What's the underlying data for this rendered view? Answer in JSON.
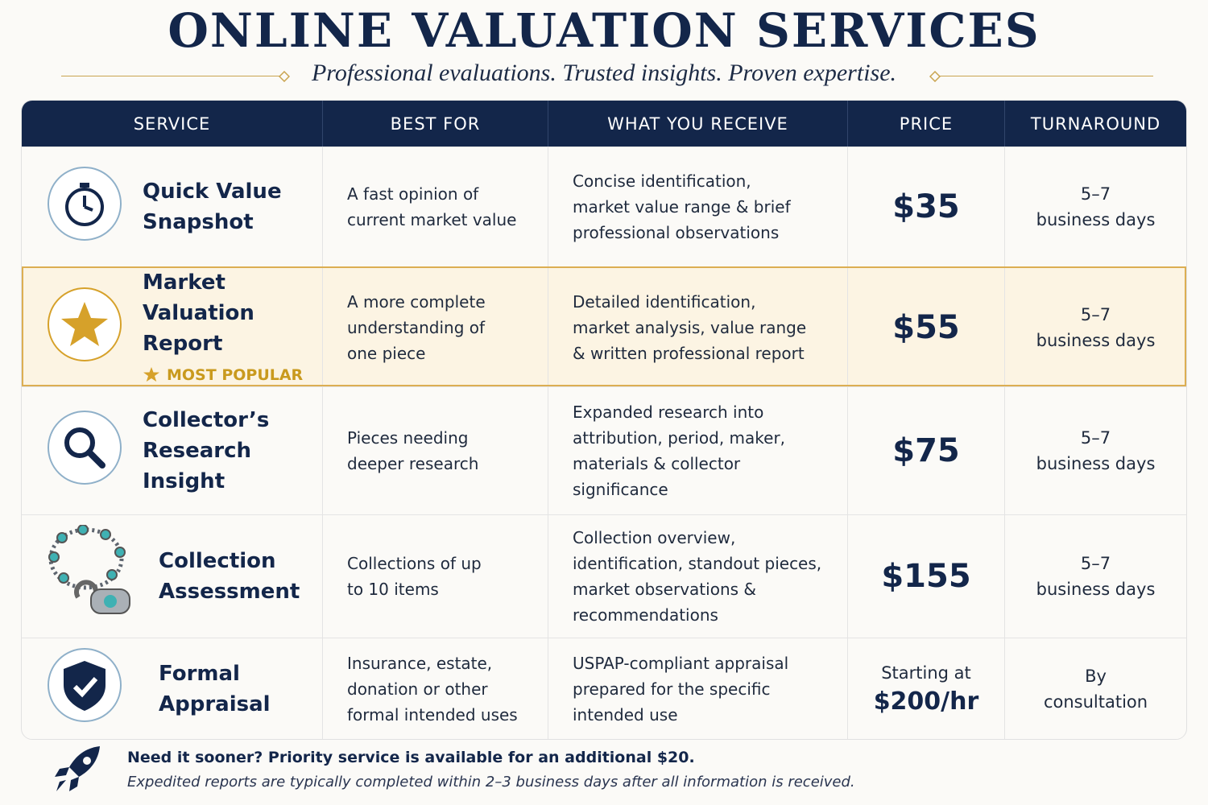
{
  "header": {
    "title": "ONLINE VALUATION SERVICES",
    "subtitle": "Professional evaluations. Trusted insights. Proven expertise."
  },
  "table": {
    "columns": [
      "SERVICE",
      "BEST FOR",
      "WHAT YOU RECEIVE",
      "PRICE",
      "TURNAROUND"
    ],
    "rows": [
      {
        "service": "Quick Value\nSnapshot",
        "best_for": "A fast opinion of\ncurrent market value",
        "receive": "Concise identification,\nmarket value range & brief\nprofessional observations",
        "price": "$35",
        "turnaround": "5–7\nbusiness days"
      },
      {
        "service": "Market Valuation\nReport",
        "badge": "MOST POPULAR",
        "best_for": "A more complete\nunderstanding of\none piece",
        "receive": "Detailed identification,\nmarket analysis, value range\n& written professional report",
        "price": "$55",
        "turnaround": "5–7\nbusiness days"
      },
      {
        "service": "Collector’s\nResearch Insight",
        "best_for": "Pieces needing\ndeeper research",
        "receive": "Expanded research into\nattribution, period, maker,\nmaterials & collector\nsignificance",
        "price": "$75",
        "turnaround": "5–7\nbusiness days"
      },
      {
        "service": "Collection\nAssessment",
        "best_for": "Collections of up\nto 10 items",
        "receive": "Collection overview,\nidentification, standout pieces,\nmarket observations &\nrecommendations",
        "price": "$155",
        "turnaround": "5–7\nbusiness days"
      },
      {
        "service": "Formal\nAppraisal",
        "best_for": "Insurance, estate,\ndonation or other\nformal intended uses",
        "receive": "USPAP-compliant appraisal\nprepared for the specific\nintended use",
        "price_note": "Starting at",
        "price": "$200/hr",
        "turnaround": "By\nconsultation"
      }
    ]
  },
  "footer": {
    "headline": "Need it sooner? Priority service is available for an additional $20.",
    "note": "Expedited reports are typically completed within 2–3 business days after all information is received."
  }
}
